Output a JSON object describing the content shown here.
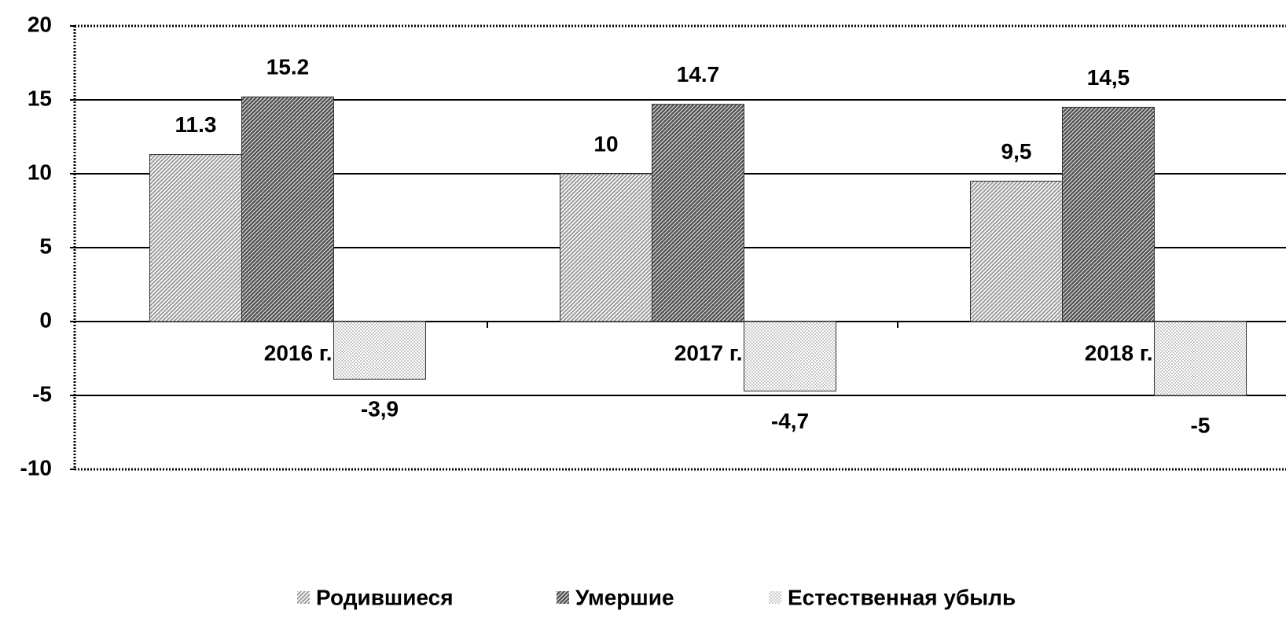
{
  "chart_data": {
    "type": "bar",
    "categories": [
      "2016 г.",
      "2017 г.",
      "2018 г."
    ],
    "series": [
      {
        "name": "Родившиеся",
        "color": "#9a9a9a",
        "values": [
          11.3,
          10,
          9.5
        ],
        "value_labels": [
          "11.3",
          "10",
          "9,5"
        ]
      },
      {
        "name": "Умершие",
        "color": "#555555",
        "values": [
          15.2,
          14.7,
          14.5
        ],
        "value_labels": [
          "15.2",
          "14.7",
          "14,5"
        ]
      },
      {
        "name": "Естественная убыль",
        "color": "#c8c8c8",
        "values": [
          -3.9,
          -4.7,
          -5
        ],
        "value_labels": [
          "-3,9",
          "-4,7",
          "-5"
        ]
      }
    ],
    "ylim": [
      -10,
      20
    ],
    "yticks": [
      -10,
      -5,
      0,
      5,
      10,
      15,
      20
    ],
    "grid": true,
    "legend": "bottom"
  }
}
